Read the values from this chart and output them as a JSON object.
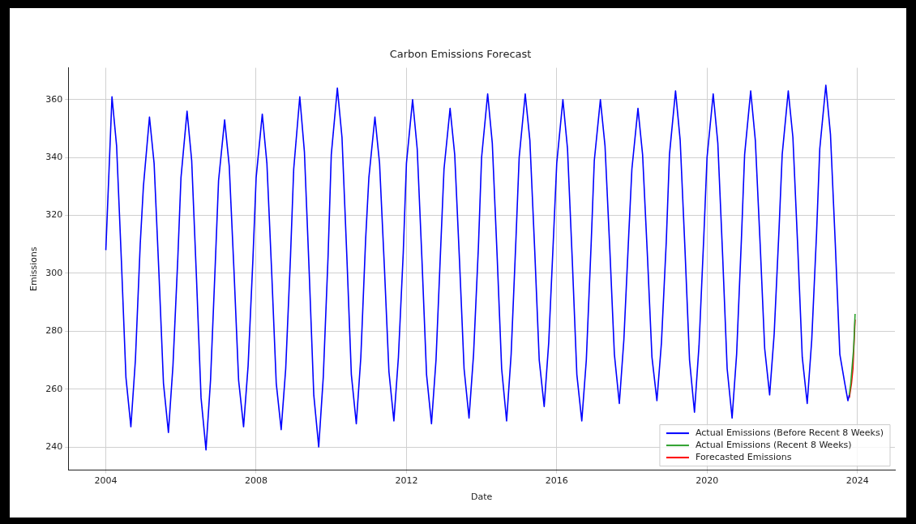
{
  "chart_data": {
    "type": "line",
    "title": "Carbon Emissions Forecast",
    "xlabel": "Date",
    "ylabel": "Emissions",
    "xlim": [
      "2003-01",
      "2025-01"
    ],
    "xticks": [
      "2004",
      "2008",
      "2012",
      "2016",
      "2020",
      "2024"
    ],
    "ylim": [
      232,
      371
    ],
    "yticks": [
      240,
      260,
      280,
      300,
      320,
      340,
      360
    ],
    "grid": true,
    "legend": "bottom right",
    "marker": "none",
    "line_style": "solid",
    "series": [
      {
        "name": "Actual Emissions (Before Recent 8 Weeks)",
        "color": "#0000ff",
        "x": [
          "2004-01-01",
          "2004-03-01",
          "2004-04-15",
          "2004-06-01",
          "2004-07-15",
          "2004-09-01",
          "2004-10-15",
          "2004-12-01",
          "2005-01-01",
          "2005-03-01",
          "2005-04-15",
          "2005-06-01",
          "2005-07-15",
          "2005-09-01",
          "2005-10-15",
          "2005-12-01",
          "2006-01-01",
          "2006-03-01",
          "2006-04-15",
          "2006-06-01",
          "2006-07-15",
          "2006-09-01",
          "2006-10-15",
          "2006-12-01",
          "2007-01-01",
          "2007-03-01",
          "2007-04-15",
          "2007-06-01",
          "2007-07-15",
          "2007-09-01",
          "2007-10-15",
          "2007-12-01",
          "2008-01-01",
          "2008-03-01",
          "2008-04-15",
          "2008-06-01",
          "2008-07-15",
          "2008-09-01",
          "2008-10-15",
          "2008-12-01",
          "2009-01-01",
          "2009-03-01",
          "2009-04-15",
          "2009-06-01",
          "2009-07-15",
          "2009-09-01",
          "2009-10-15",
          "2009-12-01",
          "2010-01-01",
          "2010-03-01",
          "2010-04-15",
          "2010-06-01",
          "2010-07-15",
          "2010-09-01",
          "2010-10-15",
          "2010-12-01",
          "2011-01-01",
          "2011-03-01",
          "2011-04-15",
          "2011-06-01",
          "2011-07-15",
          "2011-09-01",
          "2011-10-15",
          "2011-12-01",
          "2012-01-01",
          "2012-03-01",
          "2012-04-15",
          "2012-06-01",
          "2012-07-15",
          "2012-09-01",
          "2012-10-15",
          "2012-12-01",
          "2013-01-01",
          "2013-03-01",
          "2013-04-15",
          "2013-06-01",
          "2013-07-15",
          "2013-09-01",
          "2013-10-15",
          "2013-12-01",
          "2014-01-01",
          "2014-03-01",
          "2014-04-15",
          "2014-06-01",
          "2014-07-15",
          "2014-09-01",
          "2014-10-15",
          "2014-12-01",
          "2015-01-01",
          "2015-03-01",
          "2015-04-15",
          "2015-06-01",
          "2015-07-15",
          "2015-09-01",
          "2015-10-15",
          "2015-12-01",
          "2016-01-01",
          "2016-03-01",
          "2016-04-15",
          "2016-06-01",
          "2016-07-15",
          "2016-09-01",
          "2016-10-15",
          "2016-12-01",
          "2017-01-01",
          "2017-03-01",
          "2017-04-15",
          "2017-06-01",
          "2017-07-15",
          "2017-09-01",
          "2017-10-15",
          "2017-12-01",
          "2018-01-01",
          "2018-03-01",
          "2018-04-15",
          "2018-06-01",
          "2018-07-15",
          "2018-09-01",
          "2018-10-15",
          "2018-12-01",
          "2019-01-01",
          "2019-03-01",
          "2019-04-15",
          "2019-06-01",
          "2019-07-15",
          "2019-09-01",
          "2019-10-15",
          "2019-12-01",
          "2020-01-01",
          "2020-03-01",
          "2020-04-15",
          "2020-06-01",
          "2020-07-15",
          "2020-09-01",
          "2020-10-15",
          "2020-12-01",
          "2021-01-01",
          "2021-03-01",
          "2021-04-15",
          "2021-06-01",
          "2021-07-15",
          "2021-09-01",
          "2021-10-15",
          "2021-12-01",
          "2022-01-01",
          "2022-03-01",
          "2022-04-15",
          "2022-06-01",
          "2022-07-15",
          "2022-09-01",
          "2022-10-15",
          "2022-12-01",
          "2023-01-01",
          "2023-03-01",
          "2023-04-15",
          "2023-06-01",
          "2023-07-15",
          "2023-09-01",
          "2023-10-01",
          "2023-10-15"
        ],
        "values": [
          308,
          361,
          344,
          304,
          264,
          247,
          270,
          310,
          330,
          354,
          338,
          300,
          262,
          245,
          268,
          305,
          333,
          356,
          339,
          298,
          257,
          239,
          263,
          304,
          332,
          353,
          337,
          300,
          263,
          247,
          268,
          305,
          333,
          355,
          338,
          300,
          262,
          246,
          267,
          306,
          336,
          361,
          342,
          300,
          258,
          240,
          264,
          306,
          341,
          364,
          347,
          306,
          265,
          248,
          271,
          312,
          333,
          354,
          338,
          302,
          266,
          249,
          271,
          307,
          338,
          360,
          343,
          304,
          265,
          248,
          270,
          310,
          336,
          357,
          341,
          304,
          267,
          250,
          272,
          309,
          340,
          362,
          345,
          306,
          267,
          249,
          272,
          312,
          340,
          362,
          346,
          308,
          270,
          254,
          276,
          313,
          338,
          360,
          343,
          304,
          265,
          249,
          270,
          310,
          339,
          360,
          344,
          308,
          272,
          255,
          277,
          313,
          336,
          357,
          341,
          306,
          271,
          256,
          276,
          311,
          341,
          363,
          346,
          308,
          270,
          252,
          275,
          313,
          340,
          362,
          345,
          306,
          267,
          250,
          272,
          312,
          341,
          363,
          346,
          310,
          274,
          258,
          279,
          315,
          341,
          363,
          347,
          309,
          271,
          255,
          277,
          314,
          343,
          365,
          348,
          310,
          272,
          262,
          256,
          258
        ]
      },
      {
        "name": "Actual Emissions (Recent 8 Weeks)",
        "color": "#2ca02c",
        "x": [
          "2023-10-15",
          "2023-10-29",
          "2023-11-12",
          "2023-11-26",
          "2023-12-10"
        ],
        "values": [
          258,
          262,
          268,
          274,
          286
        ]
      },
      {
        "name": "Forecasted Emissions",
        "color": "#ff0000",
        "x": [
          "2023-10-15",
          "2023-11-05",
          "2023-11-19",
          "2023-12-10"
        ],
        "values": [
          257,
          262,
          267,
          284
        ]
      }
    ]
  }
}
